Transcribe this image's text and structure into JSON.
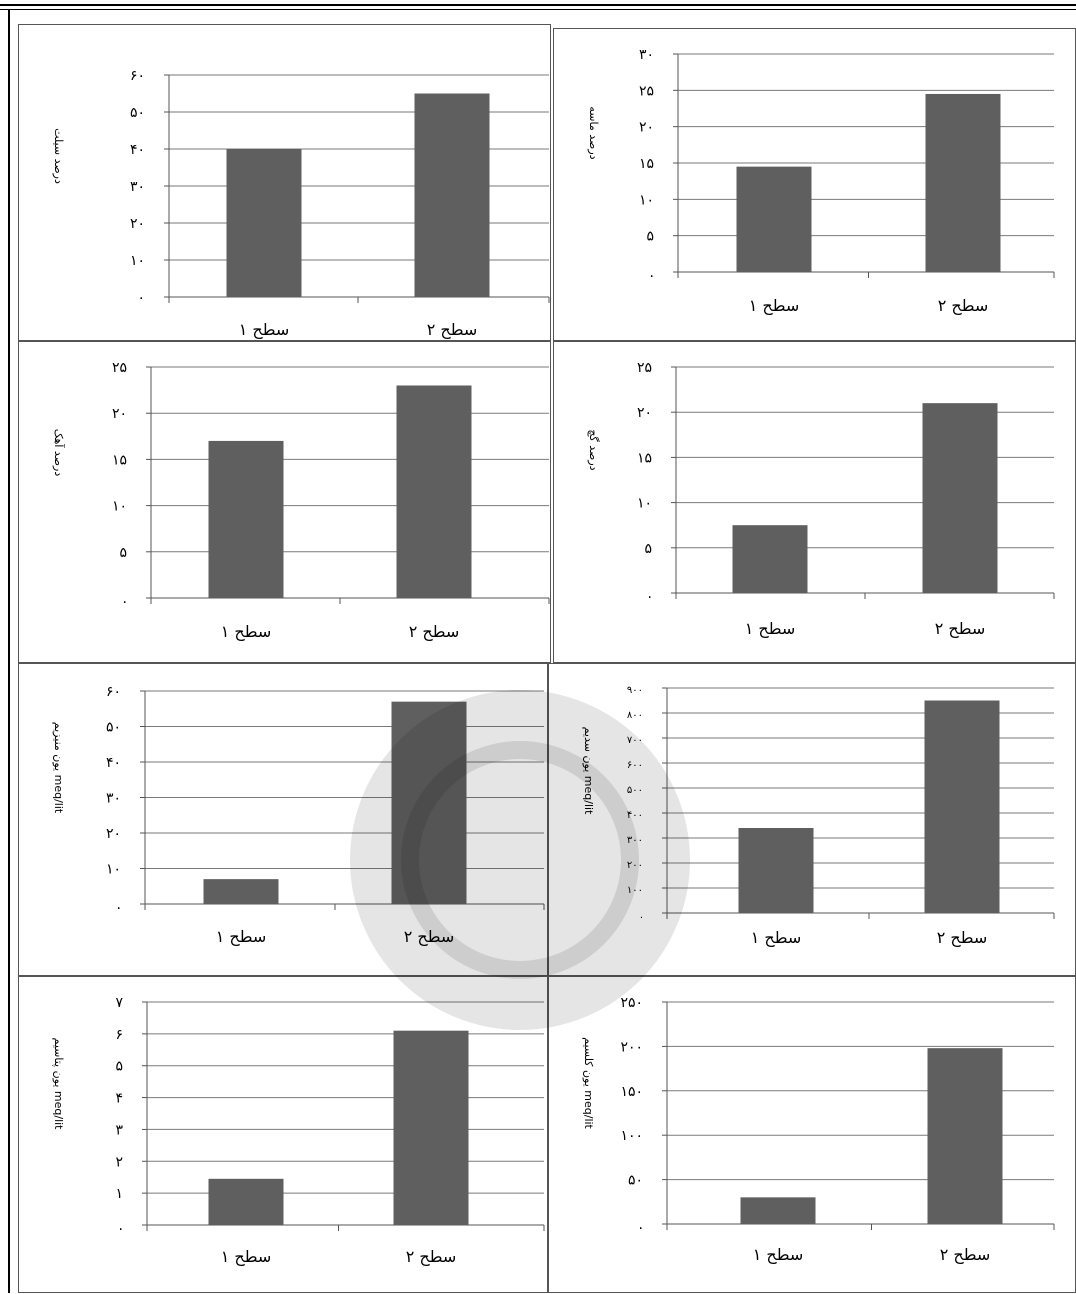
{
  "colors": {
    "bar": "#5f5f5f",
    "grid": "#7a7a7a",
    "axis": "#555555",
    "text": "#000000"
  },
  "chart_data": [
    {
      "type": "bar",
      "categories": [
        "سطح ۱",
        "سطح ۲"
      ],
      "values": [
        40,
        55
      ],
      "ylim": [
        0,
        60
      ],
      "yticks": [
        "۰",
        "۱۰",
        "۲۰",
        "۳۰",
        "۴۰",
        "۵۰",
        "۶۰"
      ],
      "ylabel": "درصد سیلت",
      "grid": true
    },
    {
      "type": "bar",
      "categories": [
        "سطح ۱",
        "سطح ۲"
      ],
      "values": [
        14.5,
        24.5
      ],
      "ylim": [
        0,
        30
      ],
      "yticks": [
        ".",
        "۵",
        "۱۰",
        "۱۵",
        "۲۰",
        "۲۵",
        "۳۰"
      ],
      "ylabel": "درصد ماسه",
      "grid": true
    },
    {
      "type": "bar",
      "categories": [
        "سطح ۱",
        "سطح ۲"
      ],
      "values": [
        17,
        23
      ],
      "ylim": [
        0,
        25
      ],
      "yticks": [
        ".",
        "۵",
        "۱۰",
        "۱۵",
        "۲۰",
        "۲۵"
      ],
      "ylabel": "درصد آهک",
      "grid": true
    },
    {
      "type": "bar",
      "categories": [
        "سطح ۱",
        "سطح ۲"
      ],
      "values": [
        7.5,
        21
      ],
      "ylim": [
        0,
        25
      ],
      "yticks": [
        ".",
        "۵",
        "۱۰",
        "۱۵",
        "۲۰",
        "۲۵"
      ],
      "ylabel": "درصد گچ",
      "grid": true
    },
    {
      "type": "bar",
      "categories": [
        "سطح ۱",
        "سطح ۲"
      ],
      "values": [
        7,
        57
      ],
      "ylim": [
        0,
        60
      ],
      "yticks": [
        ".",
        "۱۰",
        "۲۰",
        "۳۰",
        "۴۰",
        "۵۰",
        "۶۰"
      ],
      "ylabel": "یون منیزیم meq/lit",
      "grid": true
    },
    {
      "type": "bar",
      "categories": [
        "سطح ۱",
        "سطح ۲"
      ],
      "values": [
        340,
        850
      ],
      "ylim": [
        0,
        900
      ],
      "yticks": [
        ".",
        "۱۰۰",
        "۲۰۰",
        "۳۰۰",
        "۴۰۰",
        "۵۰۰",
        "۶۰۰",
        "۷۰۰",
        "۸۰۰",
        "۹۰۰"
      ],
      "ylabel": "یون سدیم meq/lit",
      "grid": true
    },
    {
      "type": "bar",
      "categories": [
        "سطح ۱",
        "سطح ۲"
      ],
      "values": [
        1.45,
        6.1
      ],
      "ylim": [
        0,
        7
      ],
      "yticks": [
        ".",
        "۱",
        "۲",
        "۳",
        "۴",
        "۵",
        "۶",
        "۷"
      ],
      "ylabel": "یون پتاسیم meq/lit",
      "grid": true
    },
    {
      "type": "bar",
      "categories": [
        "سطح ۱",
        "سطح ۲"
      ],
      "values": [
        30,
        198
      ],
      "ylim": [
        0,
        250
      ],
      "yticks": [
        ".",
        "۵۰",
        "۱۰۰",
        "۱۵۰",
        "۲۰۰",
        "۲۵۰"
      ],
      "ylabel": "یون کلسیم meq/lit",
      "grid": true
    }
  ]
}
